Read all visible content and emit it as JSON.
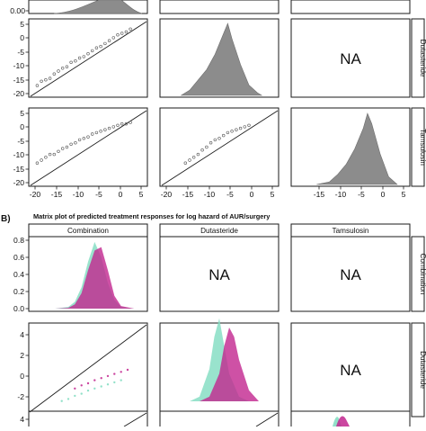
{
  "chart_data": [
    {
      "panel": "A",
      "type": "scatter",
      "layout": "scatterplot matrix (lower: scatter, diagonal: density, upper: NA)",
      "variables": [
        "Combination",
        "Dutasteride",
        "Tamsulosin"
      ],
      "upper_text": "NA",
      "xlim": [
        -21,
        7
      ],
      "ylim": [
        -21,
        6
      ],
      "x_ticks": [
        -20,
        -15,
        -10,
        -5,
        0,
        5
      ],
      "x_tick_labels": [
        "-20",
        "-15",
        "-10",
        "-5",
        "0",
        "5"
      ],
      "y_ticks": [
        -20,
        -15,
        -10,
        -5,
        0,
        5
      ],
      "y_tick_labels": [
        "-20",
        "-15",
        "-10",
        "-5",
        "0",
        "5"
      ],
      "top_row_tick_label": "0.00",
      "color": "#8c8c8c",
      "scatter_series": [
        {
          "row": "Dutasteride",
          "col": "Combination",
          "points": [
            [
              -19,
              -17
            ],
            [
              -18,
              -15.5
            ],
            [
              -17,
              -15
            ],
            [
              -16,
              -14.5
            ],
            [
              -15,
              -13
            ],
            [
              -14,
              -12
            ],
            [
              -13,
              -11
            ],
            [
              -12,
              -10.5
            ],
            [
              -11,
              -9
            ],
            [
              -10,
              -8.5
            ],
            [
              -9,
              -7.5
            ],
            [
              -8,
              -7
            ],
            [
              -7,
              -6
            ],
            [
              -6,
              -5
            ],
            [
              -5,
              -4
            ],
            [
              -4,
              -3.5
            ],
            [
              -3,
              -2.5
            ],
            [
              -2,
              -1.5
            ],
            [
              -1,
              -0.5
            ],
            [
              0,
              0.5
            ],
            [
              1,
              1
            ],
            [
              2,
              1.5
            ],
            [
              3,
              2.5
            ]
          ]
        },
        {
          "row": "Tamsulosin",
          "col": "Combination",
          "points": [
            [
              -19,
              -13
            ],
            [
              -18,
              -12
            ],
            [
              -17,
              -11
            ],
            [
              -16,
              -10
            ],
            [
              -15,
              -10
            ],
            [
              -14,
              -9
            ],
            [
              -13,
              -8
            ],
            [
              -12,
              -7.5
            ],
            [
              -11,
              -6.5
            ],
            [
              -10,
              -6
            ],
            [
              -9,
              -5
            ],
            [
              -8,
              -4.5
            ],
            [
              -7,
              -4
            ],
            [
              -6,
              -3
            ],
            [
              -5,
              -2.5
            ],
            [
              -4,
              -2
            ],
            [
              -3,
              -1.5
            ],
            [
              -2,
              -1
            ],
            [
              -1,
              -0.5
            ],
            [
              0,
              0
            ],
            [
              1,
              0.5
            ],
            [
              2,
              0.5
            ],
            [
              3,
              1
            ]
          ]
        },
        {
          "row": "Tamsulosin",
          "col": "Dutasteride",
          "points": [
            [
              -15,
              -13
            ],
            [
              -14,
              -12
            ],
            [
              -13,
              -11
            ],
            [
              -12,
              -10
            ],
            [
              -11,
              -8.5
            ],
            [
              -10,
              -7.5
            ],
            [
              -9,
              -6
            ],
            [
              -8,
              -5
            ],
            [
              -7,
              -4.5
            ],
            [
              -6,
              -3.5
            ],
            [
              -5,
              -2.5
            ],
            [
              -4,
              -2
            ],
            [
              -3,
              -1.5
            ],
            [
              -2,
              -1
            ],
            [
              -1,
              -0.5
            ],
            [
              0,
              0
            ]
          ]
        }
      ],
      "density_series": [
        {
          "variable": "Combination",
          "x": [
            -20,
            -15,
            -10,
            -5,
            0,
            5
          ],
          "y": [
            0.0,
            0.01,
            0.03,
            0.06,
            0.02,
            0.0
          ]
        },
        {
          "variable": "Dutasteride",
          "x": [
            -16,
            -14,
            -12,
            -10,
            -8,
            -6,
            -5,
            -4,
            -2,
            0,
            2,
            3
          ],
          "y": [
            0.0,
            0.01,
            0.03,
            0.05,
            0.08,
            0.12,
            0.14,
            0.11,
            0.06,
            0.02,
            0.005,
            0.0
          ]
        },
        {
          "variable": "Tamsulosin",
          "x": [
            -15,
            -12,
            -10,
            -8,
            -6,
            -4,
            -3,
            -2,
            0,
            2,
            4
          ],
          "y": [
            0.0,
            0.005,
            0.02,
            0.04,
            0.07,
            0.11,
            0.14,
            0.12,
            0.06,
            0.015,
            0.0
          ]
        }
      ]
    },
    {
      "panel": "B",
      "type": "scatter",
      "layout": "scatterplot matrix (lower: scatter, diagonal: density, upper: NA)",
      "title": "Matrix plot of predicted treatment responses for log hazard of AUR/surgery",
      "variables": [
        "Combination",
        "Dutasteride",
        "Tamsulosin"
      ],
      "upper_text": "NA",
      "colors": {
        "group_1": "#7fdcc0",
        "group_2": "#c2268f"
      },
      "diag_ylim": [
        0,
        0.9
      ],
      "diag_y_ticks": [
        0.0,
        0.2,
        0.4,
        0.6,
        0.8
      ],
      "diag_y_tick_labels": [
        "0.0",
        "0.2",
        "0.4",
        "0.6",
        "0.8"
      ],
      "row2_ylim": [
        -3.5,
        5.5
      ],
      "row2_y_ticks": [
        -2,
        0,
        2,
        4
      ],
      "row2_y_tick_labels": [
        "-2",
        "0",
        "2",
        "4"
      ],
      "row3_y_tick_labels": [
        "4"
      ],
      "density_series": [
        {
          "variable": "Combination",
          "group": "group_1",
          "x": [
            -3,
            -2,
            -1.5,
            -1,
            -0.5,
            0,
            0.5,
            1,
            1.5,
            2,
            3
          ],
          "y": [
            0.0,
            0.02,
            0.08,
            0.25,
            0.55,
            0.78,
            0.6,
            0.3,
            0.1,
            0.02,
            0.0
          ]
        },
        {
          "variable": "Combination",
          "group": "group_2",
          "x": [
            -3,
            -2,
            -1.5,
            -1,
            -0.5,
            0,
            0.5,
            1,
            1.5,
            2,
            3
          ],
          "y": [
            0.0,
            0.01,
            0.05,
            0.18,
            0.45,
            0.68,
            0.72,
            0.45,
            0.15,
            0.03,
            0.0
          ]
        },
        {
          "variable": "Dutasteride",
          "group": "group_1",
          "x": [
            -3,
            -2,
            -1,
            -0.5,
            0,
            0.5,
            1,
            2,
            3
          ],
          "y": [
            0.0,
            0.05,
            0.35,
            0.7,
            0.9,
            0.6,
            0.3,
            0.05,
            0.0
          ]
        },
        {
          "variable": "Dutasteride",
          "group": "group_2",
          "x": [
            -2,
            -1,
            0,
            0.5,
            1,
            1.5,
            2,
            3,
            4
          ],
          "y": [
            0.0,
            0.05,
            0.3,
            0.6,
            0.8,
            0.7,
            0.45,
            0.12,
            0.0
          ]
        }
      ],
      "scatter_series": [
        {
          "row": "Dutasteride",
          "col": "Combination",
          "group": "group_1",
          "points": [
            [
              -2.5,
              -2
            ],
            [
              -2,
              -1.8
            ],
            [
              -1.5,
              -1.5
            ],
            [
              -1,
              -1.3
            ],
            [
              -0.5,
              -1
            ],
            [
              0,
              -0.8
            ],
            [
              0.5,
              -0.6
            ],
            [
              1,
              -0.4
            ],
            [
              1.5,
              -0.2
            ],
            [
              2,
              0
            ]
          ]
        },
        {
          "row": "Dutasteride",
          "col": "Combination",
          "group": "group_2",
          "points": [
            [
              -1.5,
              -0.8
            ],
            [
              -1,
              -0.5
            ],
            [
              -0.5,
              -0.3
            ],
            [
              0,
              0
            ],
            [
              0.5,
              0.2
            ],
            [
              1,
              0.4
            ],
            [
              1.5,
              0.6
            ],
            [
              2,
              0.8
            ],
            [
              2.5,
              1.0
            ]
          ]
        }
      ]
    }
  ]
}
